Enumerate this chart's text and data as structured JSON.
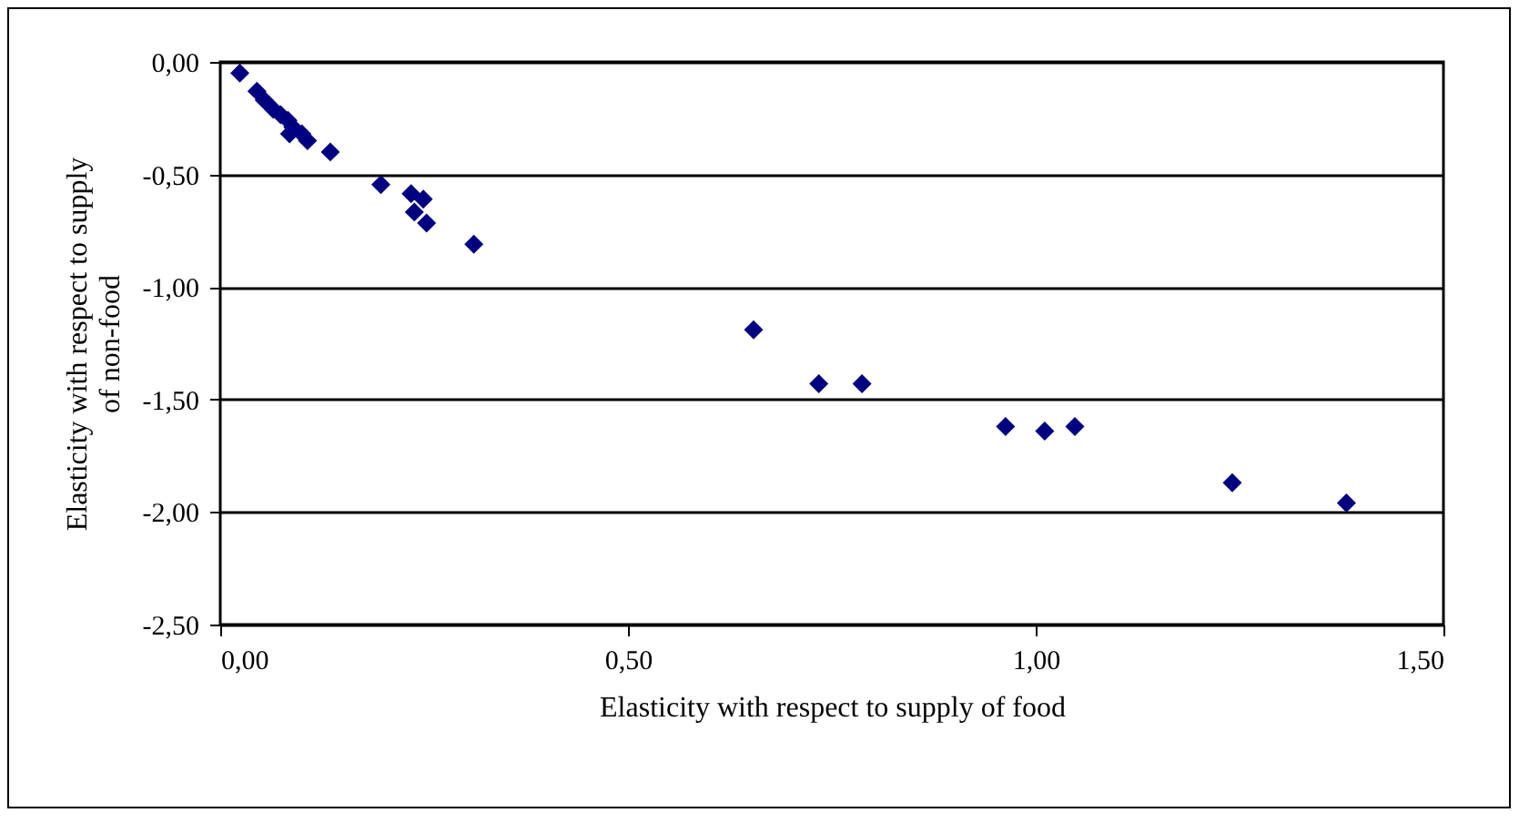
{
  "chart_data": {
    "type": "scatter",
    "xlabel": "Elasticity with respect to supply of food",
    "ylabel": "Elasticity with respect to supply of non-food",
    "x": [
      0.024,
      0.045,
      0.054,
      0.065,
      0.074,
      0.083,
      0.089,
      0.085,
      0.1,
      0.107,
      0.135,
      0.197,
      0.234,
      0.249,
      0.238,
      0.253,
      0.311,
      0.654,
      0.734,
      0.787,
      0.963,
      1.011,
      1.048,
      1.241,
      1.381
    ],
    "series": [
      {
        "color": "#000080",
        "values": [
          -0.05,
          -0.13,
          -0.17,
          -0.21,
          -0.235,
          -0.26,
          -0.29,
          -0.32,
          -0.32,
          -0.35,
          -0.4,
          -0.545,
          -0.586,
          -0.61,
          -0.667,
          -0.716,
          -0.81,
          -1.19,
          -1.43,
          -1.43,
          -1.62,
          -1.64,
          -1.62,
          -1.87,
          -1.96
        ]
      }
    ],
    "xlim": [
      0,
      1.5
    ],
    "ylim": [
      -2.5,
      0
    ],
    "xticks": [
      {
        "value": 0,
        "label": "0,00"
      },
      {
        "value": 0.5,
        "label": "0,50"
      },
      {
        "value": 1,
        "label": "1,00"
      },
      {
        "value": 1.5,
        "label": "1,50"
      }
    ],
    "yticks": [
      {
        "value": -2.5,
        "label": "-2,50"
      },
      {
        "value": -2,
        "label": "-2,00"
      },
      {
        "value": -1.5,
        "label": "-1,50"
      },
      {
        "value": -1,
        "label": "-1,00"
      },
      {
        "value": -0.5,
        "label": "-0,50"
      },
      {
        "value": 0,
        "label": "0,00"
      }
    ],
    "grid": "y",
    "marker": "diamond",
    "legend": false
  }
}
